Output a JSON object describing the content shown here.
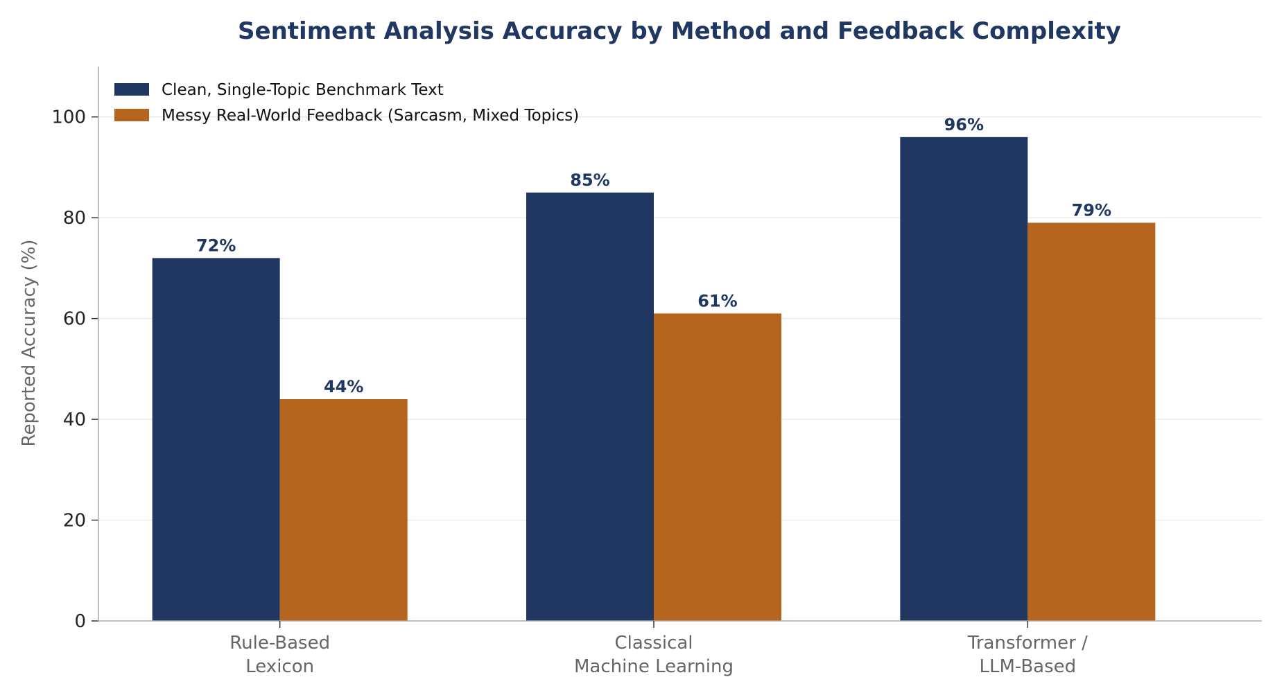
{
  "chart_data": {
    "type": "bar",
    "title": "Sentiment Analysis Accuracy by Method and Feedback Complexity",
    "xlabel": "",
    "ylabel": "Reported Accuracy (%)",
    "ylim": [
      0,
      110
    ],
    "yticks": [
      0,
      20,
      40,
      60,
      80,
      100
    ],
    "categories": [
      [
        "Rule-Based",
        "Lexicon"
      ],
      [
        "Classical",
        "Machine Learning"
      ],
      [
        "Transformer /",
        "LLM-Based"
      ]
    ],
    "series": [
      {
        "name": "Clean, Single-Topic Benchmark Text",
        "color": "#1f3761",
        "values": [
          72,
          85,
          96
        ]
      },
      {
        "name": "Messy Real-World Feedback (Sarcasm, Mixed Topics)",
        "color": "#b5651d",
        "values": [
          44,
          61,
          79
        ]
      }
    ],
    "data_labels": [
      [
        "72%",
        "85%",
        "96%"
      ],
      [
        "44%",
        "61%",
        "79%"
      ]
    ],
    "grid": "horizontal",
    "legend_position": "top-left",
    "title_color": "#1f3761",
    "label_color": "#1f3761"
  }
}
